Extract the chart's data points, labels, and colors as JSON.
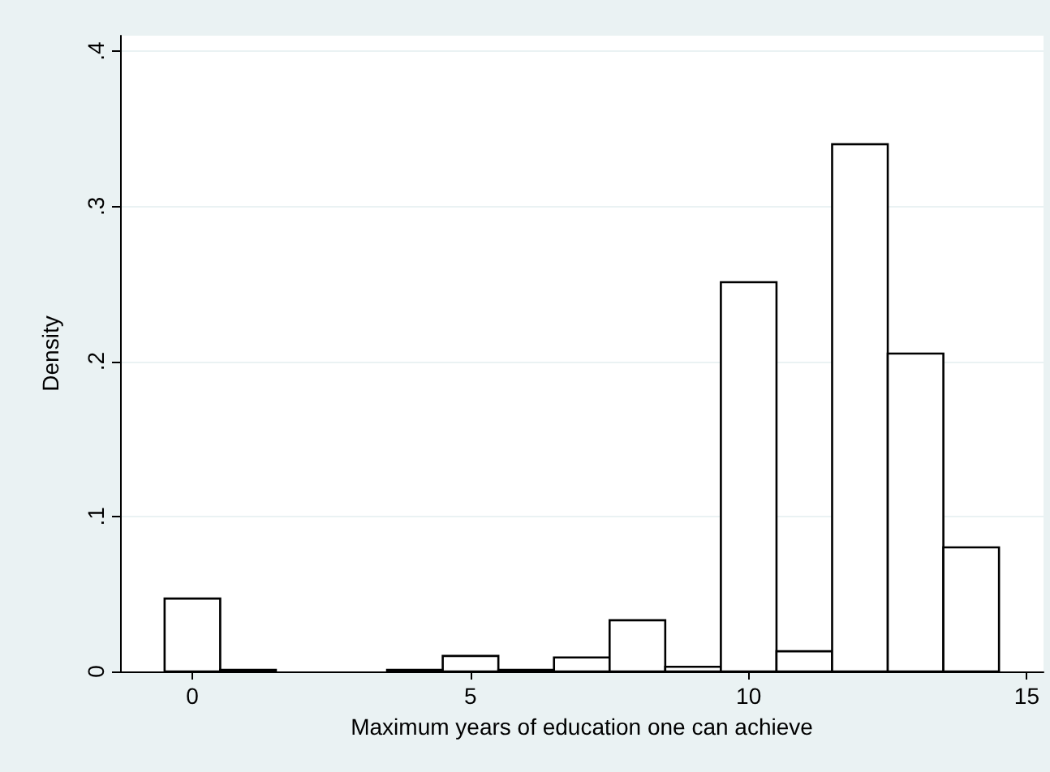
{
  "chart_data": {
    "type": "histogram",
    "xlabel": "Maximum years of education one can achieve",
    "ylabel": "Density",
    "bins": [
      -0.5,
      0.5,
      1.5,
      2.5,
      3.5,
      4.5,
      5.5,
      6.5,
      7.5,
      8.5,
      9.5,
      10.5,
      11.5,
      12.5,
      13.5,
      14.5
    ],
    "values": [
      0.047,
      0.001,
      0,
      0,
      0.001,
      0.01,
      0.001,
      0.009,
      0.033,
      0.003,
      0.251,
      0.013,
      0.34,
      0.205,
      0.08
    ],
    "color": "#ffffff",
    "xlim": [
      -1.3,
      15.3
    ],
    "xticks": [
      0,
      5,
      10,
      15
    ],
    "ylim": [
      0,
      0.41
    ],
    "yticks": [
      0,
      {
        "value": 0.1,
        "label": ".1"
      },
      {
        "value": 0.2,
        "label": ".2"
      },
      {
        "value": 0.3,
        "label": ".3"
      },
      {
        "value": 0.4,
        "label": ".4"
      }
    ],
    "grid": "y"
  }
}
